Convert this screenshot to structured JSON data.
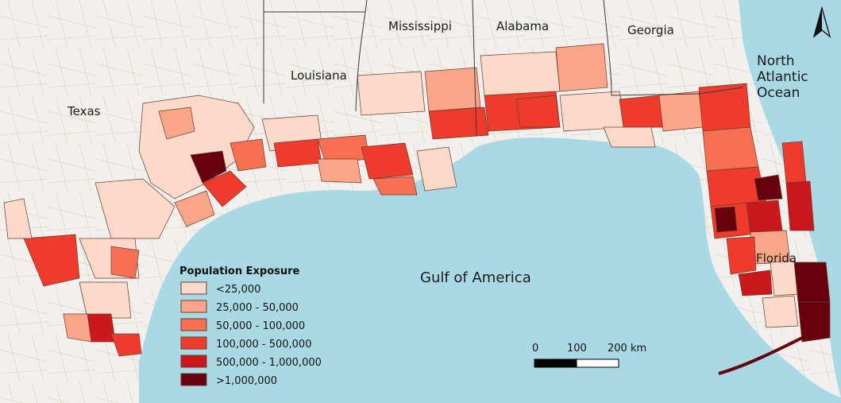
{
  "labels": {
    "texas": "Texas",
    "louisiana": "Louisiana",
    "mississippi": "Mississippi",
    "alabama": "Alabama",
    "georgia": "Georgia",
    "florida": "Florida",
    "gulf": "Gulf of America",
    "ocean_line1": "North",
    "ocean_line2": "Atlantic",
    "ocean_line3": "Ocean"
  },
  "legend": {
    "title": "Population Exposure",
    "items": [
      {
        "label": "<25,000",
        "color": "#fcd9c8"
      },
      {
        "label": "25,000 - 50,000",
        "color": "#fba588"
      },
      {
        "label": "50,000 - 100,000",
        "color": "#f86f52"
      },
      {
        "label": "100,000 - 500,000",
        "color": "#ef3b2c"
      },
      {
        "label": "500,000 - 1,000,000",
        "color": "#cb181d"
      },
      {
        "label": ">1,000,000",
        "color": "#67000d"
      }
    ]
  },
  "scale_bar": {
    "tick_0": "0",
    "tick_1": "100",
    "tick_2": "200 km"
  },
  "colors": {
    "water": "#a9d9e5",
    "land": "#f1f0ec",
    "state_border": "#3a3a3a"
  },
  "north_arrow": "north-arrow-icon"
}
